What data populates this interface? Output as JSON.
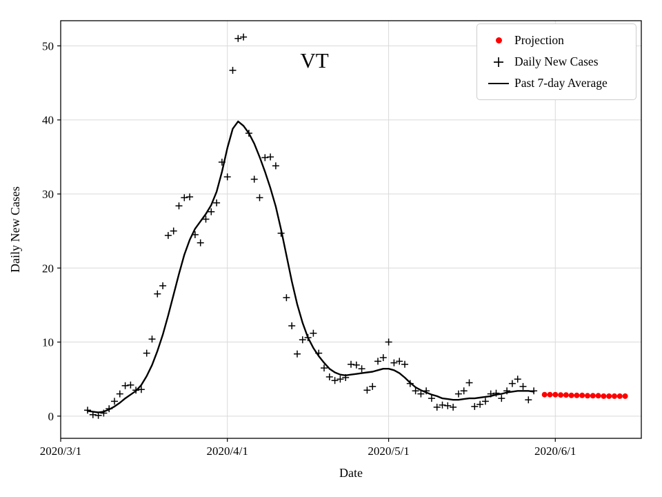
{
  "figure": {
    "title": "VT",
    "xlabel": "Date",
    "ylabel": "Daily New Cases"
  },
  "legend": {
    "items": [
      {
        "label": "Projection",
        "marker": "red-dot"
      },
      {
        "label": "Daily New Cases",
        "marker": "black-plus"
      },
      {
        "label": "Past 7-day Average",
        "marker": "black-line"
      }
    ]
  },
  "colors": {
    "projection": "#ff0000",
    "cases": "#000000",
    "average": "#000000",
    "grid": "#d9d9d9",
    "spine": "#000000"
  },
  "chart_data": {
    "type": "scatter+line",
    "title": "VT",
    "xlabel": "Date",
    "ylabel": "Daily New Cases",
    "x_epoch": "2020-03-01",
    "xlim_days": [
      0,
      108
    ],
    "ylim": [
      -3,
      53.4
    ],
    "grid": true,
    "legend_position": "upper right",
    "x_ticks": [
      {
        "day": 0,
        "label": "2020/3/1"
      },
      {
        "day": 31,
        "label": "2020/4/1"
      },
      {
        "day": 61,
        "label": "2020/5/1"
      },
      {
        "day": 92,
        "label": "2020/6/1"
      }
    ],
    "y_ticks": [
      0,
      10,
      20,
      30,
      40,
      50
    ],
    "series": [
      {
        "name": "Daily New Cases",
        "style": "plus-marker",
        "color": "#000000",
        "points": [
          [
            5,
            0.8
          ],
          [
            6,
            0.2
          ],
          [
            7,
            0.1
          ],
          [
            8,
            0.4
          ],
          [
            9,
            1.0
          ],
          [
            10,
            2.0
          ],
          [
            11,
            3.0
          ],
          [
            12,
            4.1
          ],
          [
            13,
            4.2
          ],
          [
            14,
            3.5
          ],
          [
            15,
            3.6
          ],
          [
            16,
            8.5
          ],
          [
            17,
            10.4
          ],
          [
            18,
            16.5
          ],
          [
            19,
            17.6
          ],
          [
            20,
            24.4
          ],
          [
            21,
            25.0
          ],
          [
            22,
            28.4
          ],
          [
            23,
            29.5
          ],
          [
            24,
            29.6
          ],
          [
            25,
            24.5
          ],
          [
            26,
            23.4
          ],
          [
            27,
            26.6
          ],
          [
            28,
            27.6
          ],
          [
            29,
            28.8
          ],
          [
            30,
            34.3
          ],
          [
            31,
            32.3
          ],
          [
            32,
            46.7
          ],
          [
            33,
            51.0
          ],
          [
            34,
            51.2
          ],
          [
            35,
            38.2
          ],
          [
            36,
            32.0
          ],
          [
            37,
            29.5
          ],
          [
            38,
            34.9
          ],
          [
            39,
            35.0
          ],
          [
            40,
            33.8
          ],
          [
            41,
            24.7
          ],
          [
            42,
            16.0
          ],
          [
            43,
            12.2
          ],
          [
            44,
            8.4
          ],
          [
            45,
            10.3
          ],
          [
            46,
            10.6
          ],
          [
            47,
            11.2
          ],
          [
            48,
            8.5
          ],
          [
            49,
            6.5
          ],
          [
            50,
            5.3
          ],
          [
            51,
            4.8
          ],
          [
            52,
            5.0
          ],
          [
            53,
            5.2
          ],
          [
            54,
            7.0
          ],
          [
            55,
            6.9
          ],
          [
            56,
            6.4
          ],
          [
            57,
            3.5
          ],
          [
            58,
            4.0
          ],
          [
            59,
            7.4
          ],
          [
            60,
            7.9
          ],
          [
            61,
            10.0
          ],
          [
            62,
            7.2
          ],
          [
            63,
            7.4
          ],
          [
            64,
            7.0
          ],
          [
            65,
            4.4
          ],
          [
            66,
            3.4
          ],
          [
            67,
            3.0
          ],
          [
            68,
            3.4
          ],
          [
            69,
            2.4
          ],
          [
            70,
            1.2
          ],
          [
            71,
            1.5
          ],
          [
            72,
            1.4
          ],
          [
            73,
            1.2
          ],
          [
            74,
            3.0
          ],
          [
            75,
            3.4
          ],
          [
            76,
            4.5
          ],
          [
            77,
            1.3
          ],
          [
            78,
            1.6
          ],
          [
            79,
            2.0
          ],
          [
            80,
            3.0
          ],
          [
            81,
            3.1
          ],
          [
            82,
            2.4
          ],
          [
            83,
            3.4
          ],
          [
            84,
            4.4
          ],
          [
            85,
            5.0
          ],
          [
            86,
            4.0
          ],
          [
            87,
            2.2
          ],
          [
            88,
            3.4
          ]
        ]
      },
      {
        "name": "Past 7-day Average",
        "style": "line",
        "color": "#000000",
        "points": [
          [
            5,
            0.7
          ],
          [
            6,
            0.6
          ],
          [
            7,
            0.5
          ],
          [
            8,
            0.6
          ],
          [
            9,
            0.9
          ],
          [
            10,
            1.3
          ],
          [
            11,
            1.8
          ],
          [
            12,
            2.4
          ],
          [
            13,
            2.9
          ],
          [
            14,
            3.4
          ],
          [
            15,
            4.2
          ],
          [
            16,
            5.4
          ],
          [
            17,
            6.9
          ],
          [
            18,
            8.8
          ],
          [
            19,
            11.0
          ],
          [
            20,
            13.6
          ],
          [
            21,
            16.4
          ],
          [
            22,
            19.2
          ],
          [
            23,
            21.8
          ],
          [
            24,
            23.8
          ],
          [
            25,
            25.3
          ],
          [
            26,
            26.3
          ],
          [
            27,
            27.3
          ],
          [
            28,
            28.5
          ],
          [
            29,
            30.3
          ],
          [
            30,
            33.0
          ],
          [
            31,
            36.2
          ],
          [
            32,
            38.8
          ],
          [
            33,
            39.8
          ],
          [
            34,
            39.2
          ],
          [
            35,
            38.2
          ],
          [
            36,
            36.8
          ],
          [
            37,
            35.0
          ],
          [
            38,
            33.0
          ],
          [
            39,
            30.8
          ],
          [
            40,
            28.3
          ],
          [
            41,
            25.2
          ],
          [
            42,
            21.7
          ],
          [
            43,
            18.2
          ],
          [
            44,
            15.1
          ],
          [
            45,
            12.6
          ],
          [
            46,
            10.6
          ],
          [
            47,
            9.2
          ],
          [
            48,
            8.1
          ],
          [
            49,
            7.2
          ],
          [
            50,
            6.4
          ],
          [
            51,
            5.9
          ],
          [
            52,
            5.6
          ],
          [
            53,
            5.5
          ],
          [
            54,
            5.6
          ],
          [
            55,
            5.7
          ],
          [
            56,
            5.8
          ],
          [
            57,
            5.9
          ],
          [
            58,
            6.0
          ],
          [
            59,
            6.2
          ],
          [
            60,
            6.4
          ],
          [
            61,
            6.4
          ],
          [
            62,
            6.2
          ],
          [
            63,
            5.8
          ],
          [
            64,
            5.2
          ],
          [
            65,
            4.5
          ],
          [
            66,
            3.9
          ],
          [
            67,
            3.5
          ],
          [
            68,
            3.2
          ],
          [
            69,
            2.9
          ],
          [
            70,
            2.7
          ],
          [
            71,
            2.4
          ],
          [
            72,
            2.3
          ],
          [
            73,
            2.2
          ],
          [
            74,
            2.2
          ],
          [
            75,
            2.3
          ],
          [
            76,
            2.4
          ],
          [
            77,
            2.4
          ],
          [
            78,
            2.5
          ],
          [
            79,
            2.6
          ],
          [
            80,
            2.7
          ],
          [
            81,
            2.9
          ],
          [
            82,
            3.0
          ],
          [
            83,
            3.2
          ],
          [
            84,
            3.3
          ],
          [
            85,
            3.4
          ],
          [
            86,
            3.4
          ],
          [
            87,
            3.4
          ],
          [
            88,
            3.3
          ]
        ]
      },
      {
        "name": "Projection",
        "style": "dot-marker",
        "color": "#ff0000",
        "points": [
          [
            90,
            2.9
          ],
          [
            91,
            2.9
          ],
          [
            92,
            2.9
          ],
          [
            93,
            2.85
          ],
          [
            94,
            2.85
          ],
          [
            95,
            2.8
          ],
          [
            96,
            2.8
          ],
          [
            97,
            2.8
          ],
          [
            98,
            2.75
          ],
          [
            99,
            2.75
          ],
          [
            100,
            2.75
          ],
          [
            101,
            2.7
          ],
          [
            102,
            2.7
          ],
          [
            103,
            2.7
          ],
          [
            104,
            2.7
          ],
          [
            105,
            2.7
          ]
        ]
      }
    ]
  }
}
